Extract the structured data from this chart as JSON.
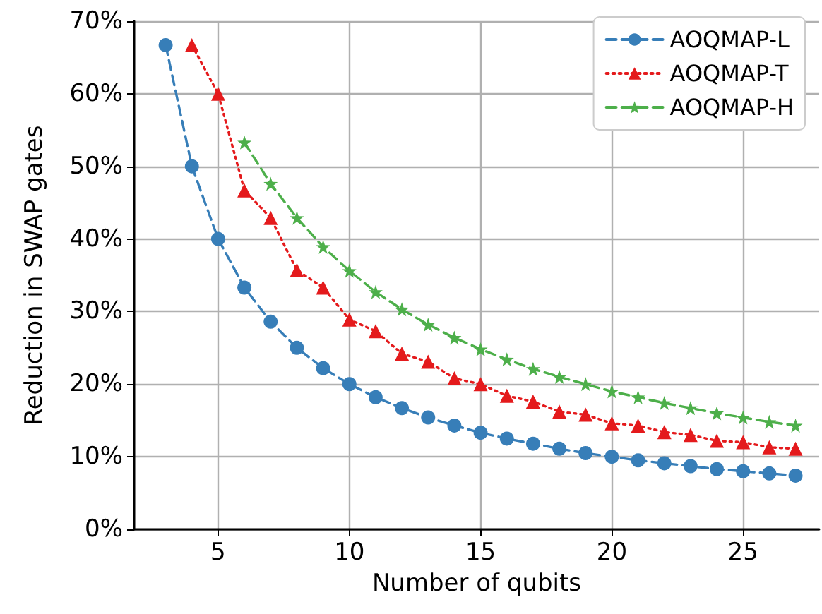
{
  "chart_data": {
    "type": "line",
    "xlabel": "Number of qubits",
    "ylabel": "Reduction in SWAP gates",
    "xlim": [
      1.8,
      27.9
    ],
    "xticks": [
      5,
      10,
      15,
      20,
      25
    ],
    "ylim": [
      0,
      70
    ],
    "yticks": [
      {
        "value": 0,
        "label": "0%"
      },
      {
        "value": 10,
        "label": "10%"
      },
      {
        "value": 20,
        "label": "20%"
      },
      {
        "value": 30,
        "label": "30%"
      },
      {
        "value": 40,
        "label": "40%"
      },
      {
        "value": 50,
        "label": "50%"
      },
      {
        "value": 60,
        "label": "60%"
      },
      {
        "value": 70,
        "label": "70%"
      }
    ],
    "grid": true,
    "legend": "top right",
    "series": [
      {
        "name": "AOQMAP-L",
        "color": "#377eb8",
        "marker": "circle",
        "line_style": "dashed",
        "x": [
          3,
          4,
          5,
          6,
          7,
          8,
          9,
          10,
          11,
          12,
          13,
          14,
          15,
          16,
          17,
          18,
          19,
          20,
          21,
          22,
          23,
          24,
          25,
          26,
          27
        ],
        "values": [
          66.7,
          50,
          40,
          33.3,
          28.6,
          25,
          22.2,
          20,
          18.2,
          16.7,
          15.4,
          14.3,
          13.3,
          12.5,
          11.8,
          11.1,
          10.5,
          10,
          9.5,
          9.1,
          8.7,
          8.3,
          8,
          7.7,
          7.4
        ]
      },
      {
        "name": "AOQMAP-T",
        "color": "#e41a1c",
        "marker": "triangle",
        "line_style": "dotted",
        "x": [
          4,
          5,
          6,
          7,
          8,
          9,
          10,
          11,
          12,
          13,
          14,
          15,
          16,
          17,
          18,
          19,
          20,
          21,
          22,
          23,
          24,
          25,
          26,
          27
        ],
        "values": [
          66.7,
          60,
          46.7,
          42.9,
          35.7,
          33.3,
          28.9,
          27.3,
          24.2,
          23.1,
          20.8,
          20,
          18.4,
          17.6,
          16.2,
          15.8,
          14.6,
          14.3,
          13.4,
          13,
          12.2,
          12,
          11.3,
          11.1
        ]
      },
      {
        "name": "AOQMAP-H",
        "color": "#4daf4a",
        "marker": "star",
        "line_style": "dashed",
        "x": [
          6,
          7,
          8,
          9,
          10,
          11,
          12,
          13,
          14,
          15,
          16,
          17,
          18,
          19,
          20,
          21,
          22,
          23,
          24,
          25,
          26,
          27
        ],
        "values": [
          53.3,
          47.6,
          42.9,
          38.9,
          35.6,
          32.7,
          30.3,
          28.2,
          26.4,
          24.8,
          23.4,
          22.1,
          21,
          20,
          19,
          18.2,
          17.4,
          16.7,
          16,
          15.4,
          14.8,
          14.3
        ]
      }
    ]
  }
}
